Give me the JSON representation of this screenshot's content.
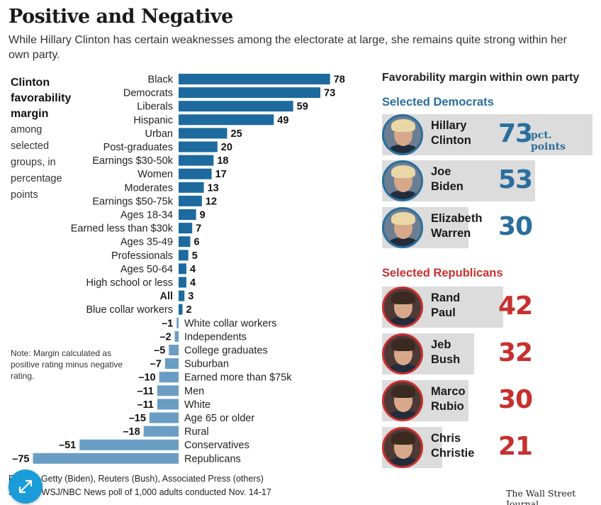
{
  "headline": "Positive and Negative",
  "subhead": "While Hillary Clinton has certain weaknesses among the electorate at large, she remains quite strong within her own party.",
  "side_label": {
    "bold": "Clinton favorability margin",
    "rest": "among selected groups, in percentage points"
  },
  "note": "Note: Margin calculated as positive rating minus negative rating.",
  "chart_data": [
    {
      "type": "bar",
      "orientation": "horizontal",
      "categories": [
        "Black",
        "Democrats",
        "Liberals",
        "Hispanic",
        "Urban",
        "Post-graduates",
        "Earnings $30-50k",
        "Women",
        "Moderates",
        "Earnings $50-75k",
        "Ages 18-34",
        "Earned less than $30k",
        "Ages 35-49",
        "Professionals",
        "Ages 50-64",
        "High school or less",
        "All",
        "Blue collar workers",
        "White collar workers",
        "Independents",
        "College graduates",
        "Suburban",
        "Earned more than $75k",
        "Men",
        "White",
        "Age 65 or older",
        "Rural",
        "Conservatives",
        "Republicans"
      ],
      "values": [
        78,
        73,
        59,
        49,
        25,
        20,
        18,
        17,
        13,
        12,
        9,
        7,
        6,
        5,
        4,
        4,
        3,
        2,
        -1,
        -2,
        -5,
        -7,
        -10,
        -11,
        -11,
        -15,
        -18,
        -51,
        -75
      ],
      "value_labels": [
        "78",
        "73",
        "59",
        "49",
        "25",
        "20",
        "18",
        "17",
        "13",
        "12",
        "9",
        "7",
        "6",
        "5",
        "4",
        "4",
        "3",
        "2",
        "–1",
        "–2",
        "–5",
        "–7",
        "–10",
        "–11",
        "–11",
        "–15",
        "–18",
        "–51",
        "–75"
      ],
      "highlight_category": "All",
      "colors": {
        "positive": "#1d6a9e",
        "negative": "#6a9dc4"
      }
    },
    {
      "type": "bar",
      "title": "Favorability margin within own party",
      "groups": [
        {
          "name": "Selected Democrats",
          "color": "#2a6e9e",
          "items": [
            {
              "first": "Hillary",
              "last": "Clinton",
              "value": 73,
              "value_label": "73",
              "unit": "pct. points"
            },
            {
              "first": "Joe",
              "last": "Biden",
              "value": 53,
              "value_label": "53"
            },
            {
              "first": "Elizabeth",
              "last": "Warren",
              "value": 30,
              "value_label": "30"
            }
          ]
        },
        {
          "name": "Selected Republicans",
          "color": "#c8302f",
          "items": [
            {
              "first": "Rand",
              "last": "Paul",
              "value": 42,
              "value_label": "42"
            },
            {
              "first": "Jeb",
              "last": "Bush",
              "value": 32,
              "value_label": "32"
            },
            {
              "first": "Marco",
              "last": "Rubio",
              "value": 30,
              "value_label": "30"
            },
            {
              "first": "Chris",
              "last": "Christie",
              "value": 21,
              "value_label": "21"
            }
          ]
        }
      ]
    }
  ],
  "credits": {
    "photos": "Photos: Getty (Biden), Reuters (Bush), Associated Press (others)",
    "source": "Source: WSJ/NBC News poll of 1,000 adults conducted Nov. 14-17"
  },
  "publisher": "The Wall Street Journal",
  "expand_icon": "expand-arrows-icon"
}
